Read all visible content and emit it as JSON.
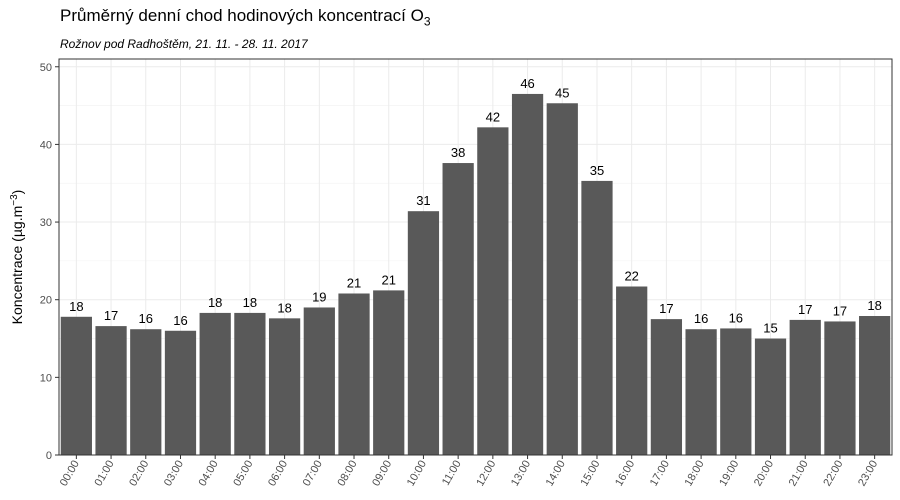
{
  "chart_data": {
    "type": "bar",
    "title": "Průměrný denní chod hodinových koncentrací O",
    "title_subscript": "3",
    "subtitle": "Rožnov pod Radhoštěm, 21. 11. - 28. 11. 2017",
    "ylabel_main": "Koncentrace  (µg.m",
    "ylabel_superscript": "−3",
    "ylabel_tail": ")",
    "xlabel": "",
    "categories": [
      "00:00",
      "01:00",
      "02:00",
      "03:00",
      "04:00",
      "05:00",
      "06:00",
      "07:00",
      "08:00",
      "09:00",
      "10:00",
      "11:00",
      "12:00",
      "13:00",
      "14:00",
      "15:00",
      "16:00",
      "17:00",
      "18:00",
      "19:00",
      "20:00",
      "21:00",
      "22:00",
      "23:00"
    ],
    "values": [
      17.8,
      16.6,
      16.2,
      16.0,
      18.3,
      18.3,
      17.6,
      19.0,
      20.8,
      21.2,
      31.4,
      37.6,
      42.2,
      46.5,
      45.3,
      35.3,
      21.7,
      17.5,
      16.2,
      16.3,
      15.0,
      17.4,
      17.2,
      17.9
    ],
    "labels": [
      "18",
      "17",
      "16",
      "16",
      "18",
      "18",
      "18",
      "19",
      "21",
      "21",
      "31",
      "38",
      "42",
      "46",
      "45",
      "35",
      "22",
      "17",
      "16",
      "16",
      "15",
      "17",
      "17",
      "18"
    ],
    "ylim": [
      0,
      51
    ],
    "yticks": [
      0,
      10,
      20,
      30,
      40,
      50
    ],
    "bar_color": "#595959",
    "grid": true
  }
}
